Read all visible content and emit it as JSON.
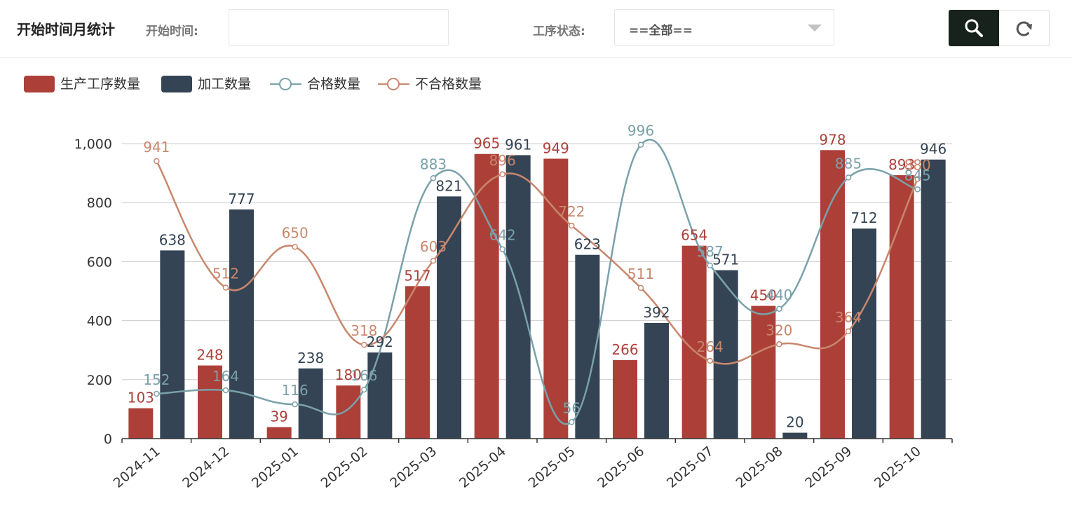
{
  "toolbar": {
    "title": "开始时间月统计",
    "start_label": "开始时间:",
    "start_value": "",
    "status_label": "工序状态:",
    "status_value": "==全部==",
    "search_icon": "search-icon",
    "refresh_icon": "refresh-icon"
  },
  "colors": {
    "production": "#ac4039",
    "processing": "#344454",
    "qualified": "#7aa1aa",
    "unqualified": "#c8876d",
    "search_button_bg": "#17221d"
  },
  "chart_data": {
    "type": "bar",
    "categories": [
      "2024-11",
      "2024-12",
      "2025-01",
      "2025-02",
      "2025-03",
      "2025-04",
      "2025-05",
      "2025-06",
      "2025-07",
      "2025-08",
      "2025-09",
      "2025-10"
    ],
    "ylim": [
      0,
      1000
    ],
    "yticks": [
      0,
      200,
      400,
      600,
      800,
      1000
    ],
    "ytick_labels": [
      "0",
      "200",
      "400",
      "600",
      "800",
      "1,000"
    ],
    "legend_position": "top-left",
    "grid": true,
    "series": [
      {
        "name": "生产工序数量",
        "type": "bar",
        "values": [
          103,
          248,
          39,
          180,
          517,
          965,
          949,
          266,
          654,
          450,
          978,
          893
        ]
      },
      {
        "name": "加工数量",
        "type": "bar",
        "values": [
          638,
          777,
          238,
          292,
          821,
          961,
          623,
          392,
          571,
          20,
          712,
          946
        ]
      },
      {
        "name": "合格数量",
        "type": "line",
        "values": [
          152,
          164,
          116,
          166,
          883,
          642,
          56,
          996,
          587,
          440,
          885,
          845
        ]
      },
      {
        "name": "不合格数量",
        "type": "line",
        "values": [
          941,
          512,
          650,
          318,
          603,
          896,
          722,
          511,
          264,
          320,
          364,
          880
        ]
      }
    ]
  }
}
